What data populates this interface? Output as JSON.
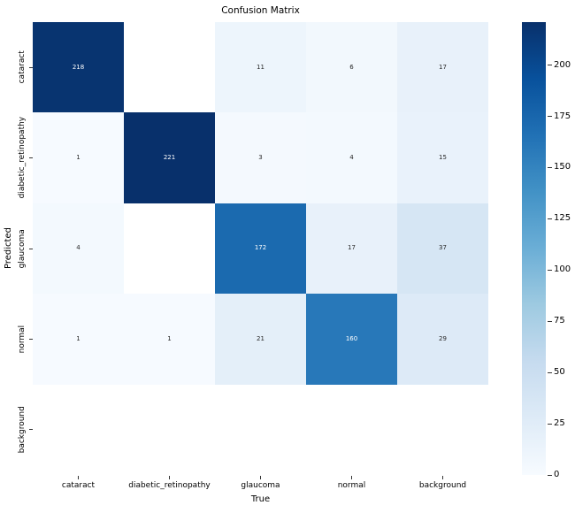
{
  "chart_data": {
    "type": "heatmap",
    "title": "Confusion Matrix",
    "xlabel": "True",
    "ylabel": "Predicted",
    "x_tick_labels": [
      "cataract",
      "diabetic_retinopathy",
      "glaucoma",
      "normal",
      "background"
    ],
    "y_tick_labels": [
      "cataract",
      "diabetic_retinopathy",
      "glaucoma",
      "normal",
      "background"
    ],
    "matrix": [
      [
        218,
        null,
        11,
        6,
        17
      ],
      [
        1,
        221,
        3,
        4,
        15
      ],
      [
        4,
        null,
        172,
        17,
        37
      ],
      [
        1,
        1,
        21,
        160,
        29
      ],
      [
        null,
        null,
        null,
        null,
        null
      ]
    ],
    "vmin": 0,
    "vmax": 221,
    "colormap": "Blues",
    "colormap_anchors": [
      "#f7fbff",
      "#deebf7",
      "#c6dbef",
      "#9ecae1",
      "#6baed6",
      "#4292c6",
      "#2171b5",
      "#08519c",
      "#08306b"
    ],
    "nan_color": "#ffffff",
    "annot_color_dark": "#262626",
    "annot_color_light": "#ffffff",
    "grid": false,
    "legend_position": "right",
    "colorbar": {
      "ticks": [
        0,
        25,
        50,
        75,
        100,
        125,
        150,
        175,
        200
      ]
    }
  }
}
